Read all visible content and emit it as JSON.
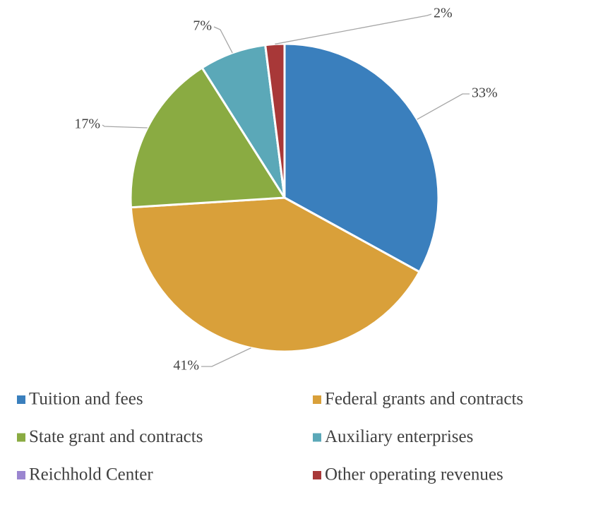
{
  "chart_data": {
    "type": "pie",
    "categories": [
      "Tuition and fees",
      "Federal grants and contracts",
      "State grant and contracts",
      "Auxiliary enterprises",
      "Reichhold Center",
      "Other operating revenues"
    ],
    "values": [
      33,
      41,
      17,
      7,
      0,
      2
    ],
    "value_labels": [
      "33%",
      "41%",
      "17%",
      "7%",
      null,
      "2%"
    ],
    "colors": [
      "#3a7fbd",
      "#d9a03a",
      "#8aab42",
      "#5ba8b8",
      "#9b86d0",
      "#a83838"
    ],
    "legend": "bottom"
  }
}
